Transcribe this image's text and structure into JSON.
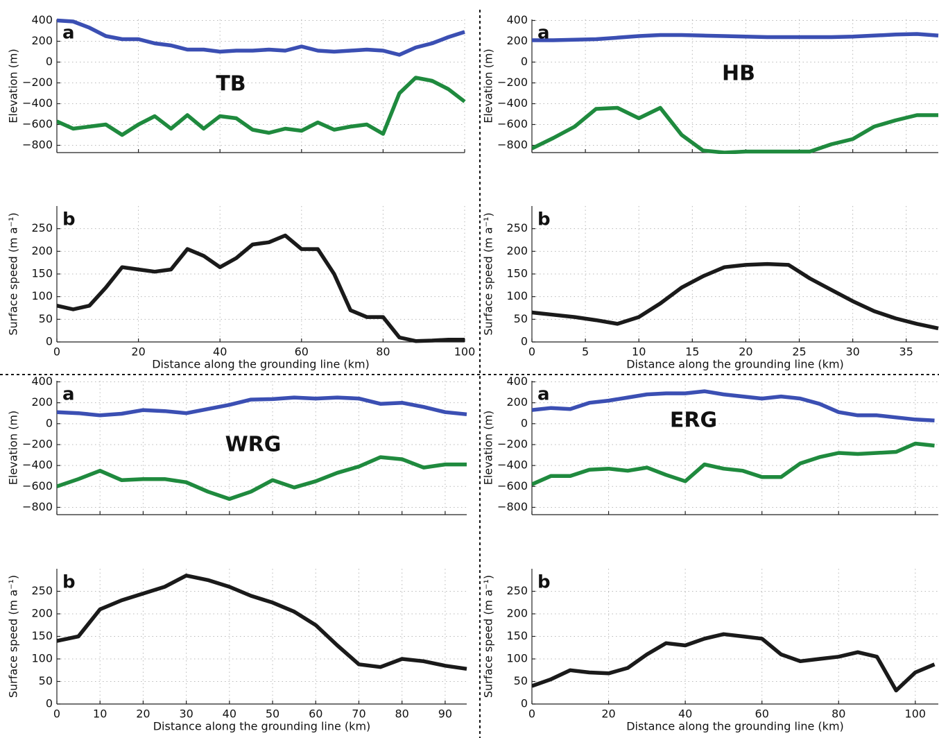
{
  "chart_data": [
    {
      "type": "line",
      "panel": "a",
      "annotation": "TB",
      "ylabel": "Elevation (m)",
      "show_xtick_labels": false,
      "grid": true,
      "x": [
        0,
        4,
        8,
        12,
        16,
        20,
        24,
        28,
        32,
        36,
        40,
        44,
        48,
        52,
        56,
        60,
        64,
        68,
        72,
        76,
        80,
        84,
        88,
        92,
        96,
        100
      ],
      "series": [
        {
          "color": "#3b4fb3",
          "values": [
            400,
            390,
            330,
            250,
            220,
            220,
            180,
            160,
            120,
            120,
            100,
            110,
            110,
            120,
            110,
            150,
            110,
            100,
            110,
            120,
            110,
            70,
            140,
            180,
            240,
            290
          ]
        },
        {
          "color": "#1f8a3e",
          "values": [
            -570,
            -640,
            -620,
            -600,
            -700,
            -600,
            -520,
            -640,
            -510,
            -640,
            -520,
            -540,
            -650,
            -680,
            -640,
            -660,
            -580,
            -650,
            -620,
            -600,
            -690,
            -300,
            -150,
            -180,
            -260,
            -380
          ]
        }
      ],
      "xlim": [
        0,
        100
      ],
      "xticks": [
        0,
        20,
        40,
        60,
        80,
        100
      ],
      "ylim": [
        -870,
        410
      ],
      "yticks": [
        {
          "value": -800,
          "label": "−800"
        },
        {
          "value": -600,
          "label": "−600"
        },
        {
          "value": -400,
          "label": "−400"
        },
        {
          "value": -200,
          "label": "−200"
        },
        0,
        200,
        400
      ]
    },
    {
      "type": "line",
      "panel": "b",
      "ylabel": "Surface speed (m a⁻¹)",
      "xlabel": "Distance along the grounding line (km)",
      "show_xtick_labels": true,
      "grid": true,
      "x": [
        0,
        4,
        8,
        12,
        16,
        20,
        24,
        28,
        32,
        36,
        40,
        44,
        48,
        52,
        56,
        60,
        64,
        68,
        72,
        76,
        80,
        84,
        88,
        92,
        96,
        100
      ],
      "series": [
        {
          "color": "#1a1a1a",
          "values": [
            80,
            72,
            80,
            120,
            165,
            160,
            155,
            160,
            205,
            190,
            165,
            185,
            215,
            220,
            235,
            205,
            205,
            150,
            70,
            55,
            55,
            10,
            2,
            3,
            5,
            5
          ]
        }
      ],
      "xlim": [
        0,
        100
      ],
      "xticks": [
        0,
        20,
        40,
        60,
        80,
        100
      ],
      "ylim": [
        0,
        300
      ],
      "yticks": [
        0,
        50,
        100,
        150,
        200,
        250
      ]
    },
    {
      "type": "line",
      "panel": "a",
      "annotation": "HB",
      "ylabel": "Elevation (m)",
      "show_xtick_labels": false,
      "grid": true,
      "x": [
        0,
        2,
        4,
        6,
        8,
        10,
        12,
        14,
        16,
        18,
        20,
        22,
        24,
        26,
        28,
        30,
        32,
        34,
        36,
        38
      ],
      "series": [
        {
          "color": "#3b4fb3",
          "values": [
            210,
            210,
            215,
            220,
            235,
            250,
            260,
            260,
            255,
            250,
            245,
            240,
            240,
            240,
            240,
            245,
            255,
            265,
            270,
            255
          ]
        },
        {
          "color": "#1f8a3e",
          "values": [
            -830,
            -730,
            -620,
            -450,
            -440,
            -540,
            -440,
            -700,
            -850,
            -870,
            -860,
            -860,
            -860,
            -860,
            -790,
            -740,
            -620,
            -560,
            -510,
            -510
          ]
        }
      ],
      "xlim": [
        0,
        38
      ],
      "xticks": [
        0,
        5,
        10,
        15,
        20,
        25,
        30,
        35
      ],
      "ylim": [
        -870,
        410
      ],
      "yticks": [
        {
          "value": -800,
          "label": "−800"
        },
        {
          "value": -600,
          "label": "−600"
        },
        {
          "value": -400,
          "label": "−400"
        },
        {
          "value": -200,
          "label": "−200"
        },
        0,
        200,
        400
      ]
    },
    {
      "type": "line",
      "panel": "b",
      "ylabel": "Surface speed (m a⁻¹)",
      "xlabel": "Distance along the grounding line (km)",
      "show_xtick_labels": true,
      "grid": true,
      "x": [
        0,
        2,
        4,
        6,
        8,
        10,
        12,
        14,
        16,
        18,
        20,
        22,
        24,
        26,
        28,
        30,
        32,
        34,
        36,
        38
      ],
      "series": [
        {
          "color": "#1a1a1a",
          "values": [
            65,
            60,
            55,
            48,
            40,
            55,
            85,
            120,
            145,
            165,
            170,
            172,
            170,
            140,
            115,
            90,
            68,
            52,
            40,
            30
          ]
        }
      ],
      "xlim": [
        0,
        38
      ],
      "xticks": [
        0,
        5,
        10,
        15,
        20,
        25,
        30,
        35
      ],
      "ylim": [
        0,
        300
      ],
      "yticks": [
        0,
        50,
        100,
        150,
        200,
        250
      ]
    },
    {
      "type": "line",
      "panel": "a",
      "annotation": "WRG",
      "ylabel": "Elevation (m)",
      "show_xtick_labels": false,
      "grid": true,
      "x": [
        0,
        5,
        10,
        15,
        20,
        25,
        30,
        35,
        40,
        45,
        50,
        55,
        60,
        65,
        70,
        75,
        80,
        85,
        90,
        95
      ],
      "series": [
        {
          "color": "#3b4fb3",
          "values": [
            110,
            100,
            80,
            95,
            130,
            120,
            100,
            140,
            180,
            230,
            235,
            250,
            240,
            250,
            240,
            190,
            200,
            160,
            110,
            90
          ]
        },
        {
          "color": "#1f8a3e",
          "values": [
            -600,
            -530,
            -450,
            -540,
            -530,
            -530,
            -560,
            -650,
            -720,
            -650,
            -540,
            -610,
            -550,
            -470,
            -410,
            -320,
            -340,
            -420,
            -390,
            -390
          ]
        }
      ],
      "xlim": [
        0,
        95
      ],
      "xticks": [
        0,
        10,
        20,
        30,
        40,
        50,
        60,
        70,
        80,
        90
      ],
      "ylim": [
        -870,
        410
      ],
      "yticks": [
        {
          "value": -800,
          "label": "−800"
        },
        {
          "value": -600,
          "label": "−600"
        },
        {
          "value": -400,
          "label": "−400"
        },
        {
          "value": -200,
          "label": "−200"
        },
        0,
        200,
        400
      ]
    },
    {
      "type": "line",
      "panel": "b",
      "ylabel": "Surface speed (m a⁻¹)",
      "xlabel": "Distance along the grounding line (km)",
      "show_xtick_labels": true,
      "grid": true,
      "x": [
        0,
        5,
        10,
        15,
        20,
        25,
        30,
        35,
        40,
        45,
        50,
        55,
        60,
        65,
        70,
        75,
        80,
        85,
        90,
        95
      ],
      "series": [
        {
          "color": "#1a1a1a",
          "values": [
            140,
            150,
            210,
            230,
            245,
            260,
            285,
            275,
            260,
            240,
            225,
            205,
            175,
            130,
            88,
            82,
            100,
            95,
            85,
            78
          ]
        }
      ],
      "xlim": [
        0,
        95
      ],
      "xticks": [
        0,
        10,
        20,
        30,
        40,
        50,
        60,
        70,
        80,
        90
      ],
      "ylim": [
        0,
        300
      ],
      "yticks": [
        0,
        50,
        100,
        150,
        200,
        250
      ]
    },
    {
      "type": "line",
      "panel": "a",
      "annotation": "ERG",
      "ylabel": "Elevation (m)",
      "show_xtick_labels": false,
      "grid": true,
      "x": [
        0,
        5,
        10,
        15,
        20,
        25,
        30,
        35,
        40,
        45,
        50,
        55,
        60,
        65,
        70,
        75,
        80,
        85,
        90,
        95,
        100,
        105
      ],
      "series": [
        {
          "color": "#3b4fb3",
          "values": [
            130,
            150,
            140,
            200,
            220,
            250,
            280,
            290,
            290,
            310,
            280,
            260,
            240,
            260,
            240,
            190,
            110,
            80,
            80,
            60,
            40,
            30
          ]
        },
        {
          "color": "#1f8a3e",
          "values": [
            -580,
            -500,
            -500,
            -440,
            -430,
            -450,
            -420,
            -490,
            -550,
            -390,
            -430,
            -450,
            -510,
            -510,
            -380,
            -320,
            -280,
            -290,
            -280,
            -270,
            -190,
            -210
          ]
        }
      ],
      "xlim": [
        0,
        106
      ],
      "xticks": [
        0,
        20,
        40,
        60,
        80,
        100
      ],
      "ylim": [
        -870,
        410
      ],
      "yticks": [
        {
          "value": -800,
          "label": "−800"
        },
        {
          "value": -600,
          "label": "−600"
        },
        {
          "value": -400,
          "label": "−400"
        },
        {
          "value": -200,
          "label": "−200"
        },
        0,
        200,
        400
      ]
    },
    {
      "type": "line",
      "panel": "b",
      "ylabel": "Surface speed (m a⁻¹)",
      "xlabel": "Distance along the grounding line (km)",
      "show_xtick_labels": true,
      "grid": true,
      "x": [
        0,
        5,
        10,
        15,
        20,
        25,
        30,
        35,
        40,
        45,
        50,
        55,
        60,
        65,
        70,
        75,
        80,
        85,
        90,
        95,
        100,
        105
      ],
      "series": [
        {
          "color": "#1a1a1a",
          "values": [
            40,
            55,
            75,
            70,
            68,
            80,
            110,
            135,
            130,
            145,
            155,
            150,
            145,
            110,
            95,
            100,
            105,
            115,
            105,
            30,
            70,
            88
          ]
        }
      ],
      "xlim": [
        0,
        106
      ],
      "xticks": [
        0,
        20,
        40,
        60,
        80,
        100
      ],
      "ylim": [
        0,
        300
      ],
      "yticks": [
        0,
        50,
        100,
        150,
        200,
        250
      ]
    }
  ]
}
